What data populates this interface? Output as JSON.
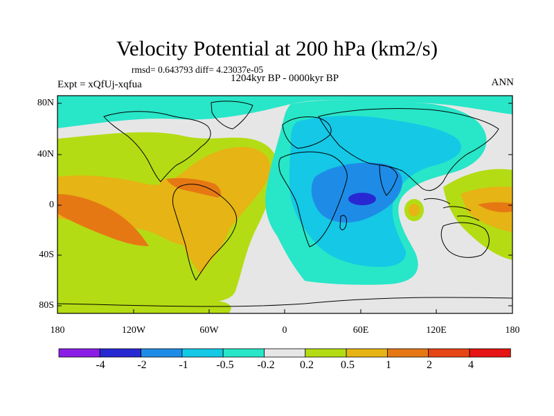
{
  "title": "Velocity Potential at 200 hPa (km2/s)",
  "stats": "rmsd= 0.643793 diff= 4.23037e-05",
  "period": "1204kyr BP - 0000kyr BP",
  "experiment": "Expt = xQfUj-xqfua",
  "season": "ANN",
  "y_axis_labels": [
    "80N",
    "40N",
    "0",
    "40S",
    "80S"
  ],
  "x_axis_labels": [
    "180",
    "120W",
    "60W",
    "0",
    "60E",
    "120E",
    "180"
  ],
  "colorbar": {
    "labels": [
      "-4",
      "-2",
      "-1",
      "-0.5",
      "-0.2",
      "0.2",
      "0.5",
      "1",
      "2",
      "4"
    ],
    "colors": [
      "#8a1ee6",
      "#2828d2",
      "#1e8ce6",
      "#14c8e6",
      "#28e6c8",
      "#e6e6e6",
      "#b4dc14",
      "#e6b414",
      "#e67814",
      "#e64614",
      "#e61414"
    ]
  },
  "colors": {
    "frame": "#000000",
    "background": "#ffffff",
    "land_outline": "#000000"
  }
}
